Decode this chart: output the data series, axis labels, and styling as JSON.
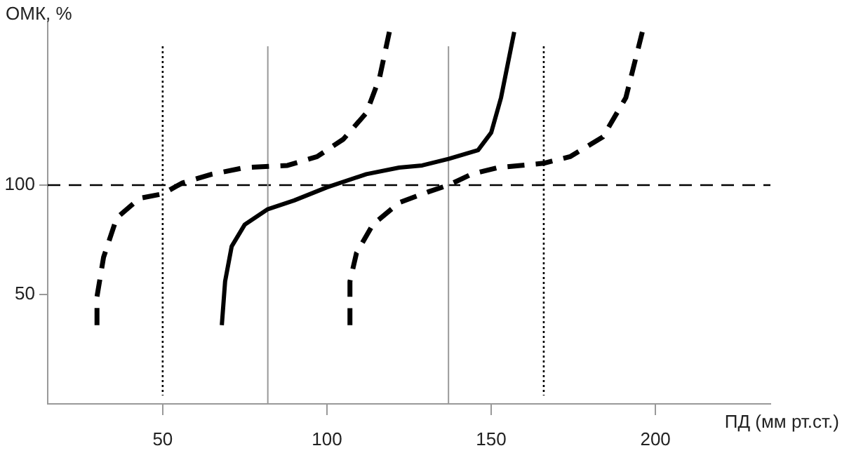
{
  "chart_data": {
    "type": "line",
    "xlabel": "ПД (мм рт.ст.)",
    "ylabel": "ОМК, %",
    "xlim": [
      15,
      235
    ],
    "xticks": [
      50,
      100,
      150,
      200
    ],
    "ylim": [
      0,
      175
    ],
    "yticks": [
      50,
      100
    ],
    "legend": false,
    "marker": "none",
    "series": [
      {
        "color": "#000000",
        "line_style": "dashed",
        "x": [
          30,
          30,
          32,
          36,
          43,
          50,
          56,
          65,
          75,
          88,
          97,
          105,
          112,
          116,
          119
        ],
        "values": [
          36,
          49,
          67,
          85,
          94,
          96,
          101,
          105,
          108,
          109,
          113,
          121,
          133,
          149,
          170
        ]
      },
      {
        "color": "#000000",
        "line_style": "solid",
        "x": [
          68,
          69,
          71,
          75,
          82,
          90,
          100,
          112,
          122,
          129,
          137,
          146,
          150,
          153,
          157
        ],
        "values": [
          36,
          56,
          72,
          82,
          89,
          93,
          99,
          105,
          108,
          109,
          112,
          116,
          124,
          140,
          170
        ]
      },
      {
        "color": "#000000",
        "line_style": "dashed",
        "x": [
          107,
          107,
          109,
          114,
          122,
          131,
          137,
          144,
          152,
          166,
          174,
          184,
          191,
          196
        ],
        "values": [
          36,
          56,
          69,
          82,
          92,
          97,
          100,
          105,
          108,
          110,
          113,
          122,
          140,
          170
        ]
      }
    ],
    "ref_lines": [
      {
        "axis": "y",
        "value": 100,
        "color": "#000000",
        "line_style": "dashed"
      },
      {
        "axis": "x",
        "value": 50,
        "color": "#000000",
        "line_style": "dotted"
      },
      {
        "axis": "x",
        "value": 82,
        "color": "#999999",
        "line_style": "solid"
      },
      {
        "axis": "x",
        "value": 137,
        "color": "#999999",
        "line_style": "solid"
      },
      {
        "axis": "x",
        "value": 166,
        "color": "#000000",
        "line_style": "dotted"
      }
    ]
  }
}
